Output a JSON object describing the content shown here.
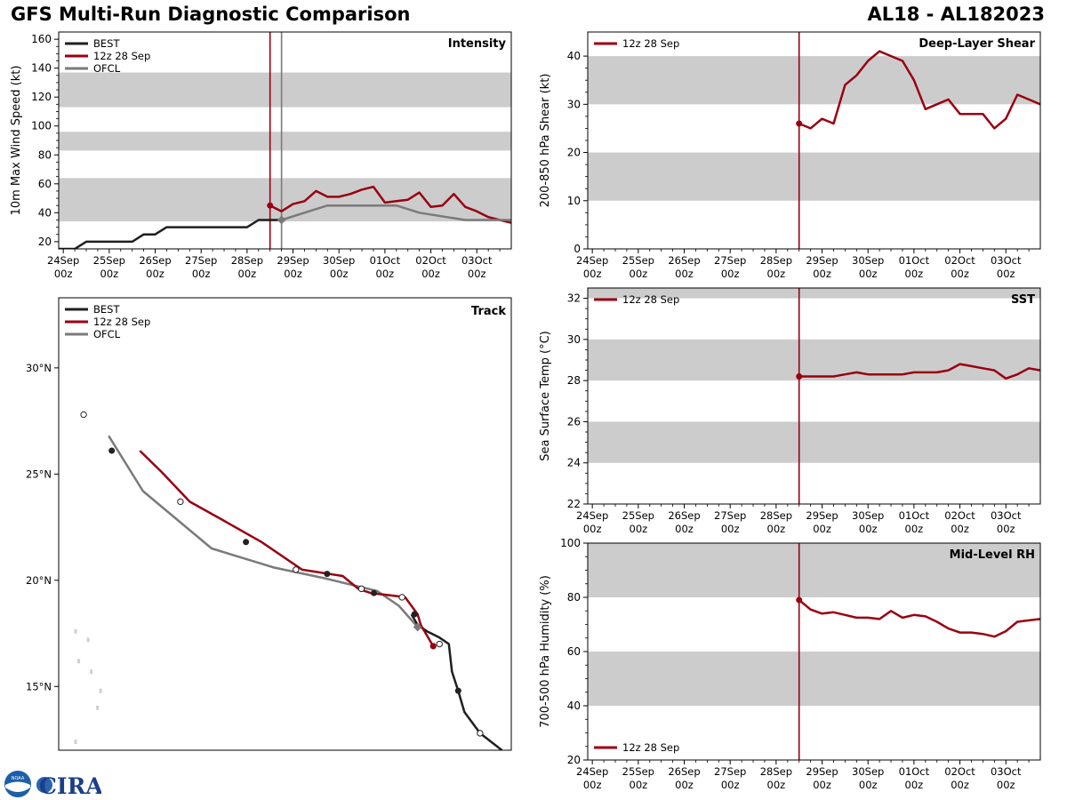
{
  "header": {
    "title_left": "GFS Multi-Run Diagnostic Comparison",
    "title_right": "AL18 - AL182023"
  },
  "logo": {
    "emblem_text": "NOAA",
    "name_text": "CIRA"
  },
  "colors": {
    "best": "#1f1f1f",
    "run": "#990011",
    "ofcl": "#7a7a7a",
    "band": "#cccccc"
  },
  "time_ticks": [
    [
      "24Sep",
      "00z"
    ],
    [
      "25Sep",
      "00z"
    ],
    [
      "26Sep",
      "00z"
    ],
    [
      "27Sep",
      "00z"
    ],
    [
      "28Sep",
      "00z"
    ],
    [
      "29Sep",
      "00z"
    ],
    [
      "30Sep",
      "00z"
    ],
    [
      "01Oct",
      "00z"
    ],
    [
      "02Oct",
      "00z"
    ],
    [
      "03Oct",
      "00z"
    ]
  ],
  "chart_data": [
    {
      "id": "intensity",
      "type": "line",
      "title": "Intensity",
      "ylabel": "10m Max Wind Speed (kt)",
      "xlabel": "",
      "xlim": [
        -0.1,
        9.75
      ],
      "ylim": [
        15,
        165
      ],
      "yticks": [
        20,
        40,
        60,
        80,
        100,
        120,
        140,
        160
      ],
      "bands": [
        [
          34,
          64
        ],
        [
          83,
          96
        ],
        [
          113,
          137
        ]
      ],
      "init_marker": 4.5,
      "ofcl_marker": 4.75,
      "legend": [
        "BEST",
        "12z 28 Sep",
        "OFCL"
      ],
      "legend_position": "top-left",
      "series": [
        {
          "name": "BEST",
          "x": [
            -0.25,
            0.25,
            0.5,
            0.75,
            1,
            1.25,
            1.5,
            1.75,
            2,
            2.25,
            2.5,
            2.75,
            3,
            3.25,
            3.5,
            3.75,
            4,
            4.25,
            4.5,
            4.75
          ],
          "y": [
            15,
            15,
            20,
            20,
            20,
            20,
            20,
            25,
            25,
            30,
            30,
            30,
            30,
            30,
            30,
            30,
            30,
            35,
            35,
            35
          ]
        },
        {
          "name": "12z 28 Sep",
          "x": [
            4.5,
            4.75,
            5.0,
            5.25,
            5.5,
            5.75,
            6.0,
            6.25,
            6.5,
            6.75,
            7.0,
            7.25,
            7.5,
            7.75,
            8.0,
            8.25,
            8.5,
            8.75,
            9.0,
            9.25,
            9.5,
            9.75
          ],
          "y": [
            45,
            41,
            46,
            48,
            55,
            51,
            51,
            53,
            56,
            58,
            47,
            48,
            49,
            54,
            44,
            45,
            53,
            44,
            41,
            37,
            35,
            33
          ]
        },
        {
          "name": "OFCL",
          "x": [
            4.75,
            5.25,
            5.75,
            6.25,
            6.75,
            7.25,
            7.75,
            8.75,
            9.75
          ],
          "y": [
            35,
            40,
            45,
            45,
            45,
            45,
            40,
            35,
            35
          ]
        }
      ]
    },
    {
      "id": "shear",
      "type": "line",
      "title": "Deep-Layer Shear",
      "ylabel": "200-850 hPa Shear (kt)",
      "xlabel": "",
      "xlim": [
        -0.1,
        9.75
      ],
      "ylim": [
        0,
        45
      ],
      "yticks": [
        0,
        10,
        20,
        30,
        40
      ],
      "bands": [
        [
          10,
          20
        ],
        [
          30,
          40
        ]
      ],
      "init_marker": 4.5,
      "legend": [
        "12z 28 Sep"
      ],
      "legend_position": "top-left",
      "series": [
        {
          "name": "12z 28 Sep",
          "x": [
            4.5,
            4.75,
            5.0,
            5.25,
            5.5,
            5.75,
            6.0,
            6.25,
            6.5,
            6.75,
            7.0,
            7.25,
            7.5,
            7.75,
            8.0,
            8.25,
            8.5,
            8.75,
            9.0,
            9.25,
            9.5,
            9.75
          ],
          "y": [
            26,
            25,
            27,
            26,
            34,
            36,
            39,
            41,
            40,
            39,
            35,
            29,
            30,
            31,
            28,
            28,
            28,
            25,
            27,
            32,
            31,
            30
          ]
        }
      ]
    },
    {
      "id": "sst",
      "type": "line",
      "title": "SST",
      "ylabel": "Sea Surface Temp (°C)",
      "xlabel": "",
      "xlim": [
        -0.1,
        9.75
      ],
      "ylim": [
        22,
        32.5
      ],
      "yticks": [
        22,
        24,
        26,
        28,
        30,
        32
      ],
      "bands": [
        [
          24,
          26
        ],
        [
          28,
          30
        ],
        [
          32,
          34
        ]
      ],
      "init_marker": 4.5,
      "legend": [
        "12z 28 Sep"
      ],
      "legend_position": "top-left",
      "series": [
        {
          "name": "12z 28 Sep",
          "x": [
            4.5,
            4.75,
            5.0,
            5.25,
            5.5,
            5.75,
            6.0,
            6.25,
            6.5,
            6.75,
            7.0,
            7.25,
            7.5,
            7.75,
            8.0,
            8.25,
            8.5,
            8.75,
            9.0,
            9.25,
            9.5,
            9.75
          ],
          "y": [
            28.2,
            28.2,
            28.2,
            28.2,
            28.3,
            28.4,
            28.3,
            28.3,
            28.3,
            28.3,
            28.4,
            28.4,
            28.4,
            28.5,
            28.8,
            28.7,
            28.6,
            28.5,
            28.1,
            28.3,
            28.6,
            28.5
          ]
        }
      ]
    },
    {
      "id": "rh",
      "type": "line",
      "title": "Mid-Level RH",
      "ylabel": "700-500 hPa Humidity (%)",
      "xlabel": "",
      "xlim": [
        -0.1,
        9.75
      ],
      "ylim": [
        20,
        100
      ],
      "yticks": [
        20,
        40,
        60,
        80,
        100
      ],
      "bands": [
        [
          40,
          60
        ],
        [
          80,
          100
        ]
      ],
      "init_marker": 4.5,
      "legend": [
        "12z 28 Sep"
      ],
      "legend_position": "bottom-left",
      "series": [
        {
          "name": "12z 28 Sep",
          "x": [
            4.5,
            4.75,
            5.0,
            5.25,
            5.5,
            5.75,
            6.0,
            6.25,
            6.5,
            6.75,
            7.0,
            7.25,
            7.5,
            7.75,
            8.0,
            8.25,
            8.5,
            8.75,
            9.0,
            9.25,
            9.5,
            9.75
          ],
          "y": [
            79,
            75.5,
            74,
            74.5,
            73.5,
            72.5,
            72.5,
            72,
            75,
            72.5,
            73.5,
            73,
            71,
            68.5,
            67,
            67,
            66.5,
            65.5,
            67.5,
            71,
            71.5,
            72
          ]
        }
      ]
    },
    {
      "id": "track",
      "type": "line",
      "title": "Track",
      "xlabel": "",
      "ylabel": "",
      "xlim": [
        -68.1,
        -53.6
      ],
      "ylim": [
        12,
        33.3
      ],
      "yticks": [
        15,
        20,
        25,
        30
      ],
      "ytick_labels": [
        "15°N",
        "20°N",
        "25°N",
        "30°N"
      ],
      "legend": [
        "BEST",
        "12z 28 Sep",
        "OFCL"
      ],
      "legend_position": "top-left",
      "series": [
        {
          "name": "BEST",
          "lon": [
            -53.9,
            -54.6,
            -55.1,
            -55.3,
            -55.5,
            -55.6,
            -55.9,
            -56.3,
            -56.6,
            -56.8
          ],
          "lat": [
            12.0,
            12.8,
            13.8,
            14.8,
            15.7,
            17.0,
            17.3,
            17.6,
            17.9,
            18.4
          ],
          "markers": [
            [
              -54.6,
              12.8,
              "open"
            ],
            [
              -55.3,
              14.8,
              "filled"
            ],
            [
              -55.9,
              17.0,
              "open"
            ],
            [
              -56.7,
              18.4,
              "filled"
            ]
          ]
        },
        {
          "name": "12z 28 Sep",
          "lon": [
            -56.1,
            -56.3,
            -56.5,
            -56.6,
            -56.8,
            -57.0,
            -57.5,
            -58.1,
            -58.5,
            -59.0,
            -60.3,
            -61.6,
            -62.8,
            -63.9,
            -64.8,
            -65.5
          ],
          "lat": [
            16.9,
            17.4,
            17.9,
            18.4,
            18.8,
            19.2,
            19.3,
            19.4,
            19.6,
            20.2,
            20.5,
            21.8,
            22.8,
            23.7,
            25.1,
            26.1
          ],
          "markers": [
            [
              -56.1,
              16.9,
              "filled"
            ],
            [
              -57.1,
              19.2,
              "open"
            ],
            [
              -58.0,
              19.4,
              "filled"
            ],
            [
              -58.4,
              19.6,
              "open"
            ],
            [
              -59.5,
              20.3,
              "filled"
            ],
            [
              -60.5,
              20.5,
              "open"
            ],
            [
              -62.1,
              21.8,
              "filled"
            ],
            [
              -64.2,
              23.7,
              "open"
            ],
            [
              -66.4,
              26.1,
              "filled"
            ],
            [
              -67.3,
              27.8,
              "open"
            ]
          ]
        },
        {
          "name": "OFCL",
          "lon": [
            -56.6,
            -57.2,
            -57.9,
            -59.6,
            -61.2,
            -63.2,
            -65.4,
            -66.5
          ],
          "lat": [
            17.8,
            18.8,
            19.5,
            20.1,
            20.6,
            21.5,
            24.2,
            26.8
          ],
          "markers": [
            [
              -56.6,
              17.8,
              "gray"
            ]
          ]
        }
      ]
    }
  ]
}
